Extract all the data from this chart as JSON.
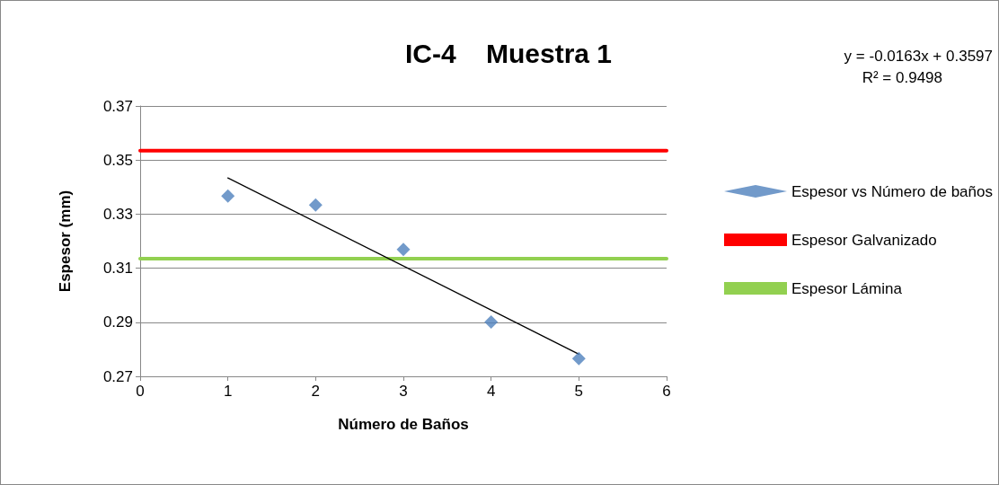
{
  "chart_data": {
    "type": "scatter",
    "title": "IC-4    Muestra 1",
    "xlabel": "Número de Baños",
    "ylabel": "Espesor (mm)",
    "annotations": [
      "y = -0.0163x + 0.3597",
      "R² = 0.9498"
    ],
    "x": [
      1,
      2,
      3,
      4,
      5
    ],
    "series": [
      {
        "name": "Espesor vs Número de baños",
        "color": "#4f81bd",
        "marker": "diamond",
        "values": [
          0.3367,
          0.3334,
          0.3169,
          0.2901,
          0.2766
        ]
      },
      {
        "name": "Espesor Galvanizado",
        "type": "line",
        "color": "#ff0000",
        "marker": "none",
        "x": [
          0,
          6
        ],
        "values": [
          0.3535,
          0.3535
        ]
      },
      {
        "name": "Espesor Lámina",
        "type": "line",
        "color": "#92d050",
        "marker": "none",
        "x": [
          0,
          6
        ],
        "values": [
          0.3135,
          0.3135
        ]
      },
      {
        "type": "line",
        "color": "#000000",
        "marker": "none",
        "x": [
          1,
          5
        ],
        "values": [
          0.3434,
          0.2782
        ]
      }
    ],
    "xlim": [
      0,
      6
    ],
    "xticks": [
      0,
      1,
      2,
      3,
      4,
      5,
      6
    ],
    "ylim": [
      0.27,
      0.37
    ],
    "yticks": [
      0.27,
      0.29,
      0.31,
      0.33,
      0.35,
      0.37
    ],
    "grid": "y",
    "legend": "right",
    "line_style": "solid"
  }
}
